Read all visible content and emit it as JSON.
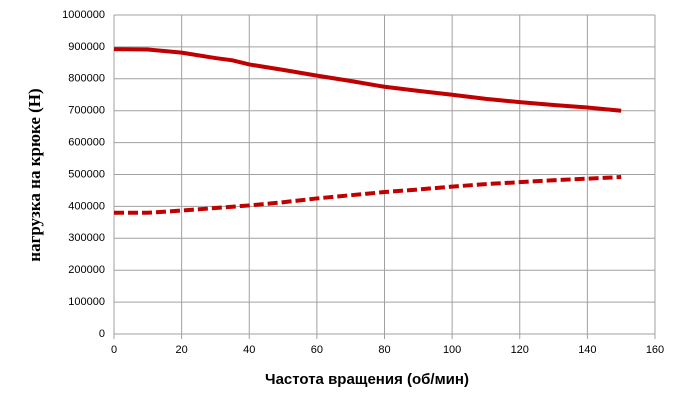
{
  "chart_data": {
    "type": "line",
    "xlabel": "Частота вращения (об/мин)",
    "ylabel": "нагрузка на крюке (Н)",
    "x": [
      0,
      10,
      20,
      30,
      35,
      40,
      50,
      60,
      70,
      80,
      90,
      100,
      110,
      120,
      130,
      140,
      150
    ],
    "series": [
      {
        "color": "#c00000",
        "style": "solid",
        "values": [
          893000,
          892000,
          882000,
          865000,
          858000,
          845000,
          828000,
          810000,
          793000,
          775000,
          762000,
          750000,
          737000,
          727000,
          718000,
          710000,
          700000
        ]
      },
      {
        "color": "#c00000",
        "style": "dashed",
        "values": [
          380000,
          380000,
          387000,
          395000,
          399000,
          403000,
          413000,
          425000,
          435000,
          445000,
          453000,
          462000,
          470000,
          476000,
          482000,
          487000,
          492000
        ]
      }
    ],
    "xlim": [
      0,
      160
    ],
    "xticks": [
      0,
      20,
      40,
      60,
      80,
      100,
      120,
      140,
      160
    ],
    "ylim": [
      0,
      1000000
    ],
    "yticks": [
      0,
      100000,
      200000,
      300000,
      400000,
      500000,
      600000,
      700000,
      800000,
      900000,
      1000000
    ],
    "grid": true
  }
}
